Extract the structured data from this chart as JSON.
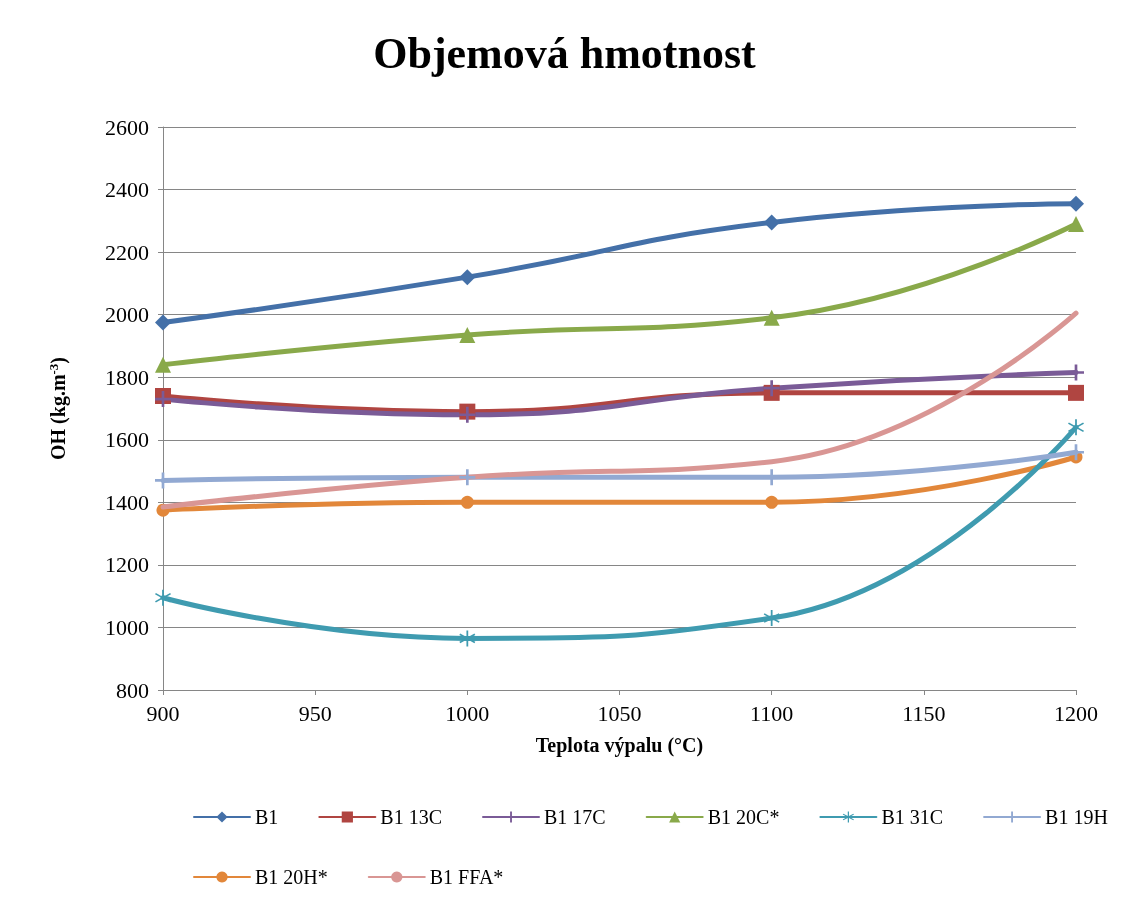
{
  "chart_data": {
    "type": "line",
    "title": "Objemová hmotnost",
    "xlabel": "Teplota výpalu (°C)",
    "ylabel": "OH (kg.m$^{-3}$)",
    "x": [
      900,
      1000,
      1100,
      1200
    ],
    "xlim": [
      900,
      1200
    ],
    "xticks": [
      900,
      950,
      1000,
      1050,
      1100,
      1150,
      1200
    ],
    "ylim": [
      800,
      2600
    ],
    "yticks": [
      800,
      1000,
      1200,
      1400,
      1600,
      1800,
      2000,
      2200,
      2400,
      2600
    ],
    "grid": "y",
    "legend": "bottom",
    "series": [
      {
        "name": "B1",
        "color": "#4470a8",
        "marker": "diamond",
        "values": [
          1975,
          2120,
          2295,
          2355
        ]
      },
      {
        "name": "B1 13C",
        "color": "#b04541",
        "marker": "square",
        "values": [
          1740,
          1690,
          1750,
          1750
        ]
      },
      {
        "name": "B1 17C",
        "color": "#7a5b97",
        "marker": "cross",
        "values": [
          1730,
          1680,
          1765,
          1815
        ]
      },
      {
        "name": "B1 20C*",
        "color": "#89a94a",
        "marker": "triangle",
        "values": [
          1840,
          1935,
          1990,
          2290
        ]
      },
      {
        "name": "B1 31C",
        "color": "#3f9bb0",
        "marker": "star",
        "values": [
          1095,
          965,
          1030,
          1640
        ]
      },
      {
        "name": "B1 19H",
        "color": "#92a9d2",
        "marker": "cross",
        "values": [
          1470,
          1480,
          1480,
          1560
        ]
      },
      {
        "name": "B1 20H*",
        "color": "#e2873a",
        "marker": "circle",
        "values": [
          1375,
          1400,
          1400,
          1545
        ]
      },
      {
        "name": "B1 FFA*",
        "color": "#d99694",
        "marker": "none",
        "values": [
          1385,
          1480,
          1530,
          2005
        ]
      }
    ]
  }
}
